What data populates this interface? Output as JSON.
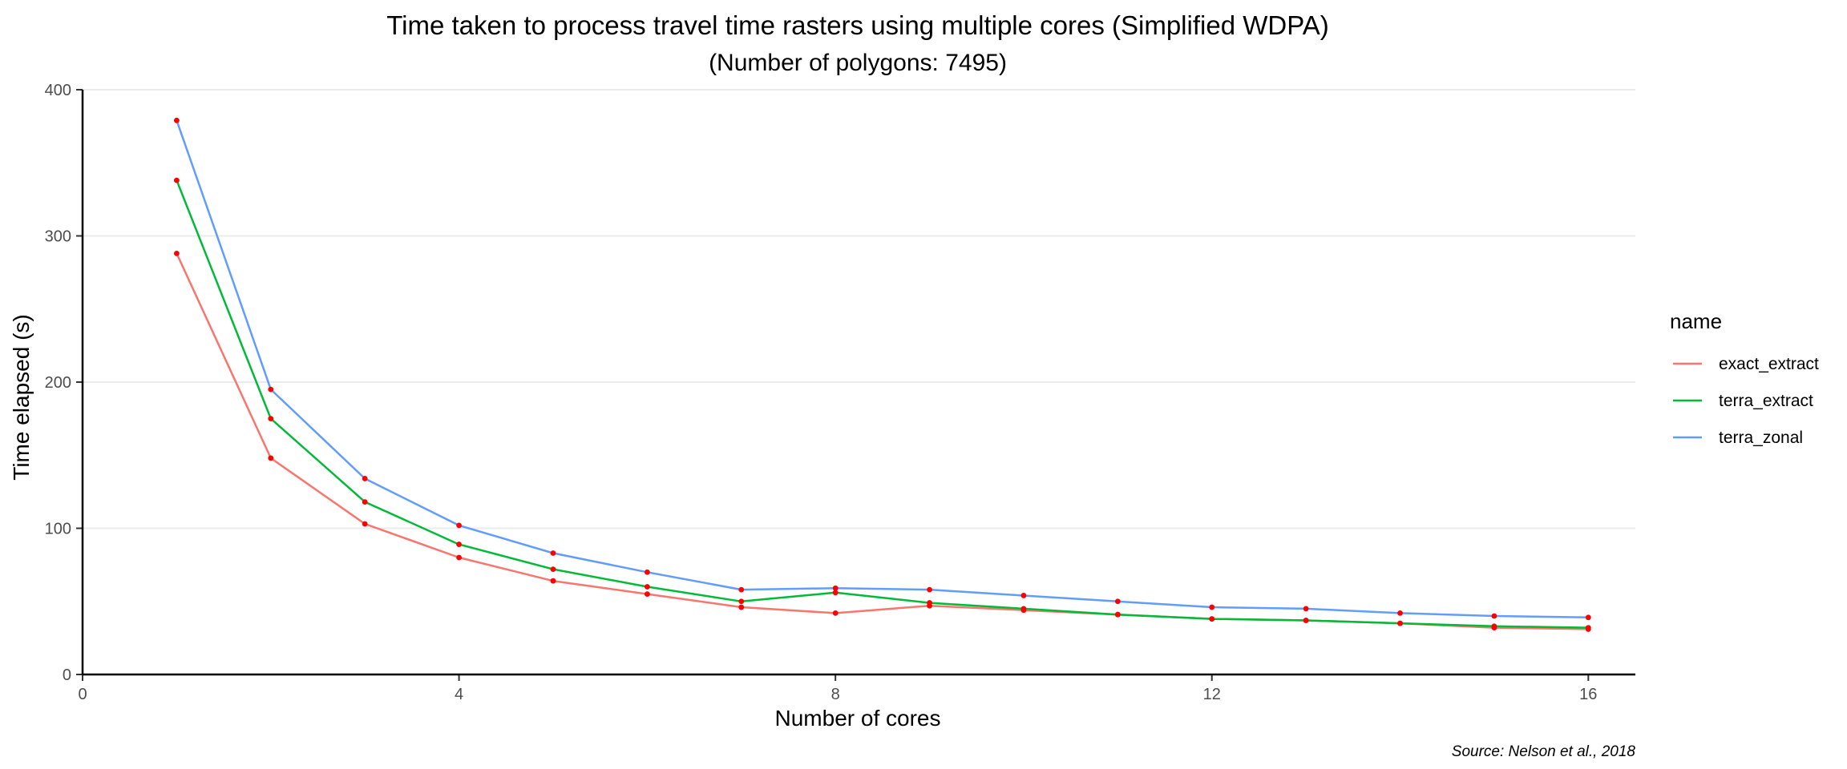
{
  "chart_data": {
    "type": "line",
    "title": "Time taken to process travel time rasters using multiple cores (Simplified WDPA)",
    "subtitle": "(Number of polygons: 7495)",
    "xlabel": "Number of cores",
    "ylabel": "Time elapsed (s)",
    "caption": "Source: Nelson et al., 2018",
    "xlim": [
      0,
      16.5
    ],
    "ylim": [
      0,
      400
    ],
    "x_ticks": [
      0,
      4,
      8,
      12,
      16
    ],
    "y_ticks": [
      0,
      100,
      200,
      300,
      400
    ],
    "grid": "horizontal",
    "legend_title": "name",
    "legend_position": "right",
    "point_color": "#ff0000",
    "x": [
      1,
      2,
      3,
      4,
      5,
      6,
      7,
      8,
      9,
      10,
      11,
      12,
      13,
      14,
      15,
      16
    ],
    "series": [
      {
        "name": "exact_extract",
        "color": "#f8766d",
        "values": [
          288,
          148,
          103,
          80,
          64,
          55,
          46,
          42,
          47,
          44,
          41,
          38,
          37,
          35,
          32,
          31
        ]
      },
      {
        "name": "terra_extract",
        "color": "#00ba38",
        "values": [
          338,
          175,
          118,
          89,
          72,
          60,
          50,
          56,
          49,
          45,
          41,
          38,
          37,
          35,
          33,
          32
        ]
      },
      {
        "name": "terra_zonal",
        "color": "#619cff",
        "values": [
          379,
          195,
          134,
          102,
          83,
          70,
          58,
          59,
          58,
          54,
          50,
          46,
          45,
          42,
          40,
          39
        ]
      }
    ]
  }
}
